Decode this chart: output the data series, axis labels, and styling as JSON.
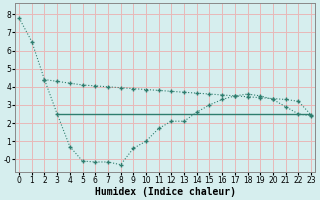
{
  "curve1_x": [
    0,
    1,
    2,
    3,
    4,
    5,
    6,
    7,
    8,
    9,
    10,
    11,
    12,
    13,
    14,
    15,
    16,
    17,
    18,
    19,
    20,
    21,
    22,
    23
  ],
  "curve1_y": [
    7.8,
    6.5,
    4.4,
    2.5,
    0.7,
    -0.1,
    -0.15,
    -0.15,
    -0.3,
    0.6,
    1.0,
    1.7,
    2.1,
    2.1,
    2.6,
    3.0,
    3.3,
    3.5,
    3.6,
    3.5,
    3.3,
    2.9,
    2.5,
    2.4
  ],
  "curve2_x": [
    2,
    3,
    4,
    5,
    6,
    7,
    8,
    9,
    10,
    11,
    12,
    13,
    14,
    15,
    16,
    17,
    18,
    19,
    20,
    21,
    22,
    23
  ],
  "curve2_y": [
    4.4,
    4.3,
    4.2,
    4.1,
    4.05,
    4.0,
    3.95,
    3.9,
    3.85,
    3.8,
    3.75,
    3.7,
    3.65,
    3.6,
    3.55,
    3.5,
    3.45,
    3.4,
    3.35,
    3.3,
    3.2,
    2.45
  ],
  "hline_y": 2.5,
  "hline_x_start": 3,
  "hline_x_end": 23,
  "color": "#2e7d6e",
  "bg_color": "#d6eeee",
  "grid_major_color": "#e8b8b8",
  "grid_minor_color": "#c8dede",
  "xlabel": "Humidex (Indice chaleur)",
  "xlim": [
    -0.3,
    23.3
  ],
  "ylim": [
    -0.7,
    8.6
  ],
  "yticks": [
    0,
    1,
    2,
    3,
    4,
    5,
    6,
    7,
    8
  ],
  "xticks": [
    0,
    1,
    2,
    3,
    4,
    5,
    6,
    7,
    8,
    9,
    10,
    11,
    12,
    13,
    14,
    15,
    16,
    17,
    18,
    19,
    20,
    21,
    22,
    23
  ],
  "tick_fontsize": 5.5,
  "label_fontsize": 7.0
}
